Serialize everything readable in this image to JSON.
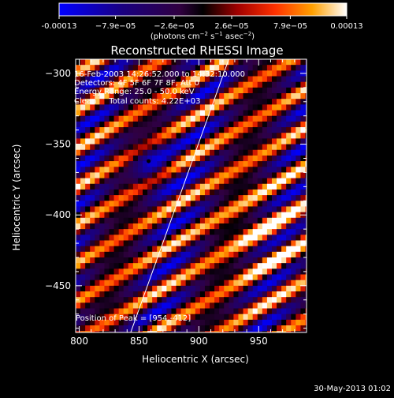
{
  "chart_data": {
    "type": "heatmap",
    "title": "Reconstructed RHESSI Image",
    "xlabel": "Heliocentric X (arcsec)",
    "ylabel": "Heliocentric Y (arcsec)",
    "xlim": [
      797,
      990
    ],
    "ylim": [
      -483,
      -290
    ],
    "x_ticks": [
      800,
      850,
      900,
      950
    ],
    "y_ticks": [
      -300,
      -350,
      -400,
      -450
    ],
    "colorbar": {
      "ticks": [
        "-0.00013",
        "−7.9e−05",
        "−2.6e−05",
        "2.6e−05",
        "7.9e−05",
        "0.00013"
      ],
      "tick_values": [
        -0.00013,
        -7.9e-05,
        -2.6e-05,
        2.6e-05,
        7.9e-05,
        0.00013
      ],
      "range": [
        -0.00013,
        0.00013
      ],
      "units_line": "(photons cm",
      "units_exp1": "−2",
      "units_mid1": " s",
      "units_exp2": "−1",
      "units_mid2": " asec",
      "units_exp3": "−2",
      "units_end": ")"
    },
    "annotations": [
      "16-Feb-2003 14:26:52.000 to 14:32:10.000",
      "Detectors: 4F 5F 6F 7F 8F, Att 0",
      "Energy Range: 25.0 - 50.0 keV",
      "Clean     Total counts: 4.22E+03"
    ],
    "peak_label": "Position of Peak = [954,-412]",
    "peak_position": [
      954,
      -412
    ],
    "limb_line": [
      [
        843,
        -483
      ],
      [
        925,
        -290
      ]
    ],
    "marker": [
      858,
      -362
    ]
  },
  "footer_date": "30-May-2013 01:02"
}
